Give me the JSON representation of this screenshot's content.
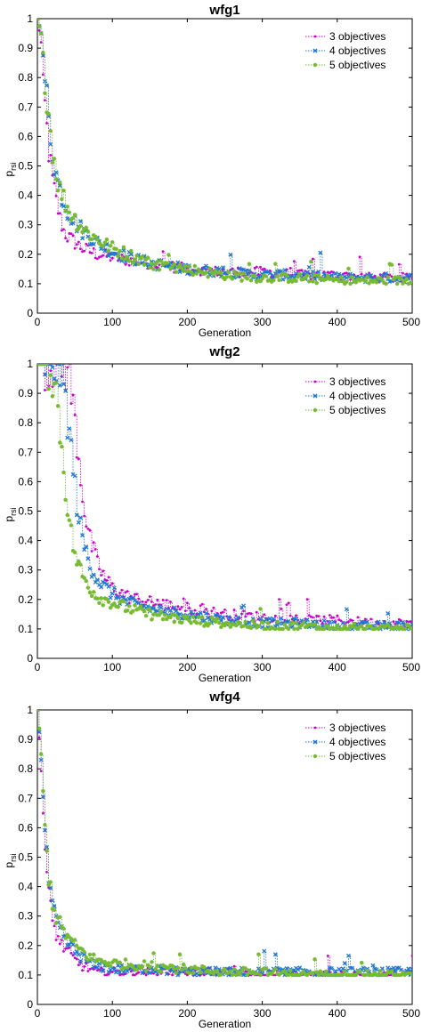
{
  "chart_data": [
    {
      "type": "scatter",
      "title": "wfg1",
      "xlabel": "Generation",
      "ylabel": "p",
      "ylabel_sub": "rsi",
      "xlim": [
        0,
        500
      ],
      "ylim": [
        0,
        1
      ],
      "xticks": [
        "0",
        "100",
        "200",
        "300",
        "400",
        "500"
      ],
      "yticks": [
        "0",
        "0.1",
        "0.2",
        "0.3",
        "0.4",
        "0.5",
        "0.6",
        "0.7",
        "0.8",
        "0.9",
        "1"
      ],
      "legend_position": "top-right",
      "series": [
        {
          "name": "3 objectives",
          "color": "#cc00cc",
          "marker": "dot",
          "values": [
            [
              0,
              1.0
            ],
            [
              5,
              0.92
            ],
            [
              10,
              0.7
            ],
            [
              15,
              0.55
            ],
            [
              20,
              0.45
            ],
            [
              25,
              0.38
            ],
            [
              30,
              0.32
            ],
            [
              35,
              0.28
            ],
            [
              40,
              0.26
            ],
            [
              50,
              0.24
            ],
            [
              60,
              0.22
            ],
            [
              70,
              0.21
            ],
            [
              80,
              0.2
            ],
            [
              100,
              0.19
            ],
            [
              120,
              0.18
            ],
            [
              150,
              0.17
            ],
            [
              200,
              0.15
            ],
            [
              250,
              0.14
            ],
            [
              300,
              0.14
            ],
            [
              350,
              0.13
            ],
            [
              400,
              0.13
            ],
            [
              450,
              0.12
            ],
            [
              500,
              0.12
            ]
          ]
        },
        {
          "name": "4 objectives",
          "color": "#1f77d0",
          "marker": "x",
          "values": [
            [
              0,
              1.0
            ],
            [
              5,
              0.95
            ],
            [
              10,
              0.8
            ],
            [
              15,
              0.65
            ],
            [
              20,
              0.55
            ],
            [
              25,
              0.47
            ],
            [
              30,
              0.42
            ],
            [
              35,
              0.38
            ],
            [
              40,
              0.35
            ],
            [
              50,
              0.31
            ],
            [
              60,
              0.28
            ],
            [
              70,
              0.26
            ],
            [
              80,
              0.24
            ],
            [
              100,
              0.21
            ],
            [
              120,
              0.19
            ],
            [
              150,
              0.17
            ],
            [
              200,
              0.15
            ],
            [
              250,
              0.14
            ],
            [
              300,
              0.13
            ],
            [
              350,
              0.13
            ],
            [
              400,
              0.12
            ],
            [
              450,
              0.12
            ],
            [
              500,
              0.12
            ]
          ]
        },
        {
          "name": "5 objectives",
          "color": "#77bb33",
          "marker": "circle",
          "values": [
            [
              0,
              1.0
            ],
            [
              5,
              0.95
            ],
            [
              10,
              0.82
            ],
            [
              15,
              0.68
            ],
            [
              20,
              0.56
            ],
            [
              25,
              0.48
            ],
            [
              30,
              0.42
            ],
            [
              35,
              0.39
            ],
            [
              40,
              0.36
            ],
            [
              50,
              0.32
            ],
            [
              60,
              0.29
            ],
            [
              70,
              0.27
            ],
            [
              80,
              0.25
            ],
            [
              100,
              0.22
            ],
            [
              120,
              0.2
            ],
            [
              150,
              0.17
            ],
            [
              200,
              0.15
            ],
            [
              250,
              0.13
            ],
            [
              300,
              0.12
            ],
            [
              350,
              0.12
            ],
            [
              400,
              0.11
            ],
            [
              450,
              0.11
            ],
            [
              500,
              0.11
            ]
          ]
        }
      ]
    },
    {
      "type": "scatter",
      "title": "wfg2",
      "xlabel": "Generation",
      "ylabel": "p",
      "ylabel_sub": "rsi",
      "xlim": [
        0,
        500
      ],
      "ylim": [
        0,
        1
      ],
      "xticks": [
        "0",
        "100",
        "200",
        "300",
        "400",
        "500"
      ],
      "yticks": [
        "0",
        "0.1",
        "0.2",
        "0.3",
        "0.4",
        "0.5",
        "0.6",
        "0.7",
        "0.8",
        "0.9",
        "1"
      ],
      "legend_position": "top-right",
      "series": [
        {
          "name": "3 objectives",
          "color": "#cc00cc",
          "marker": "dot",
          "values": [
            [
              0,
              1.0
            ],
            [
              20,
              1.0
            ],
            [
              30,
              1.0
            ],
            [
              40,
              0.98
            ],
            [
              45,
              0.9
            ],
            [
              50,
              0.8
            ],
            [
              55,
              0.68
            ],
            [
              60,
              0.56
            ],
            [
              65,
              0.46
            ],
            [
              70,
              0.4
            ],
            [
              80,
              0.32
            ],
            [
              90,
              0.27
            ],
            [
              100,
              0.24
            ],
            [
              120,
              0.21
            ],
            [
              150,
              0.19
            ],
            [
              200,
              0.17
            ],
            [
              250,
              0.15
            ],
            [
              300,
              0.14
            ],
            [
              350,
              0.13
            ],
            [
              400,
              0.13
            ],
            [
              450,
              0.12
            ],
            [
              500,
              0.12
            ]
          ]
        },
        {
          "name": "4 objectives",
          "color": "#1f77d0",
          "marker": "x",
          "values": [
            [
              0,
              1.0
            ],
            [
              20,
              1.0
            ],
            [
              30,
              0.98
            ],
            [
              35,
              0.92
            ],
            [
              40,
              0.82
            ],
            [
              45,
              0.7
            ],
            [
              50,
              0.58
            ],
            [
              55,
              0.48
            ],
            [
              60,
              0.4
            ],
            [
              70,
              0.32
            ],
            [
              80,
              0.27
            ],
            [
              90,
              0.24
            ],
            [
              100,
              0.22
            ],
            [
              120,
              0.19
            ],
            [
              150,
              0.17
            ],
            [
              200,
              0.15
            ],
            [
              250,
              0.13
            ],
            [
              300,
              0.12
            ],
            [
              350,
              0.12
            ],
            [
              400,
              0.11
            ],
            [
              450,
              0.11
            ],
            [
              500,
              0.11
            ]
          ]
        },
        {
          "name": "5 objectives",
          "color": "#77bb33",
          "marker": "circle",
          "values": [
            [
              0,
              1.0
            ],
            [
              15,
              1.0
            ],
            [
              20,
              0.97
            ],
            [
              25,
              0.9
            ],
            [
              30,
              0.78
            ],
            [
              35,
              0.65
            ],
            [
              40,
              0.52
            ],
            [
              45,
              0.42
            ],
            [
              50,
              0.35
            ],
            [
              60,
              0.28
            ],
            [
              70,
              0.24
            ],
            [
              80,
              0.21
            ],
            [
              100,
              0.19
            ],
            [
              120,
              0.17
            ],
            [
              150,
              0.15
            ],
            [
              200,
              0.13
            ],
            [
              250,
              0.12
            ],
            [
              300,
              0.11
            ],
            [
              350,
              0.11
            ],
            [
              400,
              0.1
            ],
            [
              450,
              0.1
            ],
            [
              500,
              0.1
            ]
          ]
        }
      ]
    },
    {
      "type": "scatter",
      "title": "wfg4",
      "xlabel": "Generation",
      "ylabel": "p",
      "ylabel_sub": "rsi",
      "xlim": [
        0,
        500
      ],
      "ylim": [
        0,
        1
      ],
      "xticks": [
        "0",
        "100",
        "200",
        "300",
        "400",
        "500"
      ],
      "yticks": [
        "0",
        "0.1",
        "0.2",
        "0.3",
        "0.4",
        "0.5",
        "0.6",
        "0.7",
        "0.8",
        "0.9",
        "1"
      ],
      "legend_position": "top-right",
      "series": [
        {
          "name": "3 objectives",
          "color": "#cc00cc",
          "marker": "dot",
          "values": [
            [
              0,
              1.0
            ],
            [
              4,
              0.85
            ],
            [
              8,
              0.62
            ],
            [
              12,
              0.45
            ],
            [
              16,
              0.35
            ],
            [
              20,
              0.28
            ],
            [
              25,
              0.24
            ],
            [
              30,
              0.21
            ],
            [
              40,
              0.18
            ],
            [
              50,
              0.15
            ],
            [
              60,
              0.13
            ],
            [
              70,
              0.12
            ],
            [
              80,
              0.11
            ],
            [
              100,
              0.11
            ],
            [
              150,
              0.11
            ],
            [
              200,
              0.11
            ],
            [
              250,
              0.11
            ],
            [
              300,
              0.1
            ],
            [
              350,
              0.1
            ],
            [
              400,
              0.1
            ],
            [
              450,
              0.1
            ],
            [
              500,
              0.1
            ]
          ]
        },
        {
          "name": "4 objectives",
          "color": "#1f77d0",
          "marker": "x",
          "values": [
            [
              0,
              1.0
            ],
            [
              4,
              0.88
            ],
            [
              8,
              0.68
            ],
            [
              12,
              0.5
            ],
            [
              16,
              0.4
            ],
            [
              20,
              0.33
            ],
            [
              25,
              0.28
            ],
            [
              30,
              0.25
            ],
            [
              40,
              0.21
            ],
            [
              50,
              0.18
            ],
            [
              60,
              0.16
            ],
            [
              70,
              0.14
            ],
            [
              80,
              0.13
            ],
            [
              100,
              0.12
            ],
            [
              150,
              0.12
            ],
            [
              200,
              0.11
            ],
            [
              250,
              0.11
            ],
            [
              300,
              0.11
            ],
            [
              350,
              0.11
            ],
            [
              400,
              0.11
            ],
            [
              450,
              0.11
            ],
            [
              500,
              0.11
            ]
          ]
        },
        {
          "name": "5 objectives",
          "color": "#77bb33",
          "marker": "circle",
          "values": [
            [
              0,
              1.0
            ],
            [
              4,
              0.9
            ],
            [
              8,
              0.7
            ],
            [
              12,
              0.52
            ],
            [
              16,
              0.42
            ],
            [
              20,
              0.35
            ],
            [
              25,
              0.3
            ],
            [
              30,
              0.27
            ],
            [
              40,
              0.23
            ],
            [
              50,
              0.2
            ],
            [
              60,
              0.18
            ],
            [
              70,
              0.16
            ],
            [
              80,
              0.15
            ],
            [
              100,
              0.14
            ],
            [
              150,
              0.13
            ],
            [
              200,
              0.12
            ],
            [
              250,
              0.11
            ],
            [
              300,
              0.11
            ],
            [
              350,
              0.1
            ],
            [
              400,
              0.1
            ],
            [
              450,
              0.1
            ],
            [
              500,
              0.1
            ]
          ]
        }
      ]
    }
  ]
}
